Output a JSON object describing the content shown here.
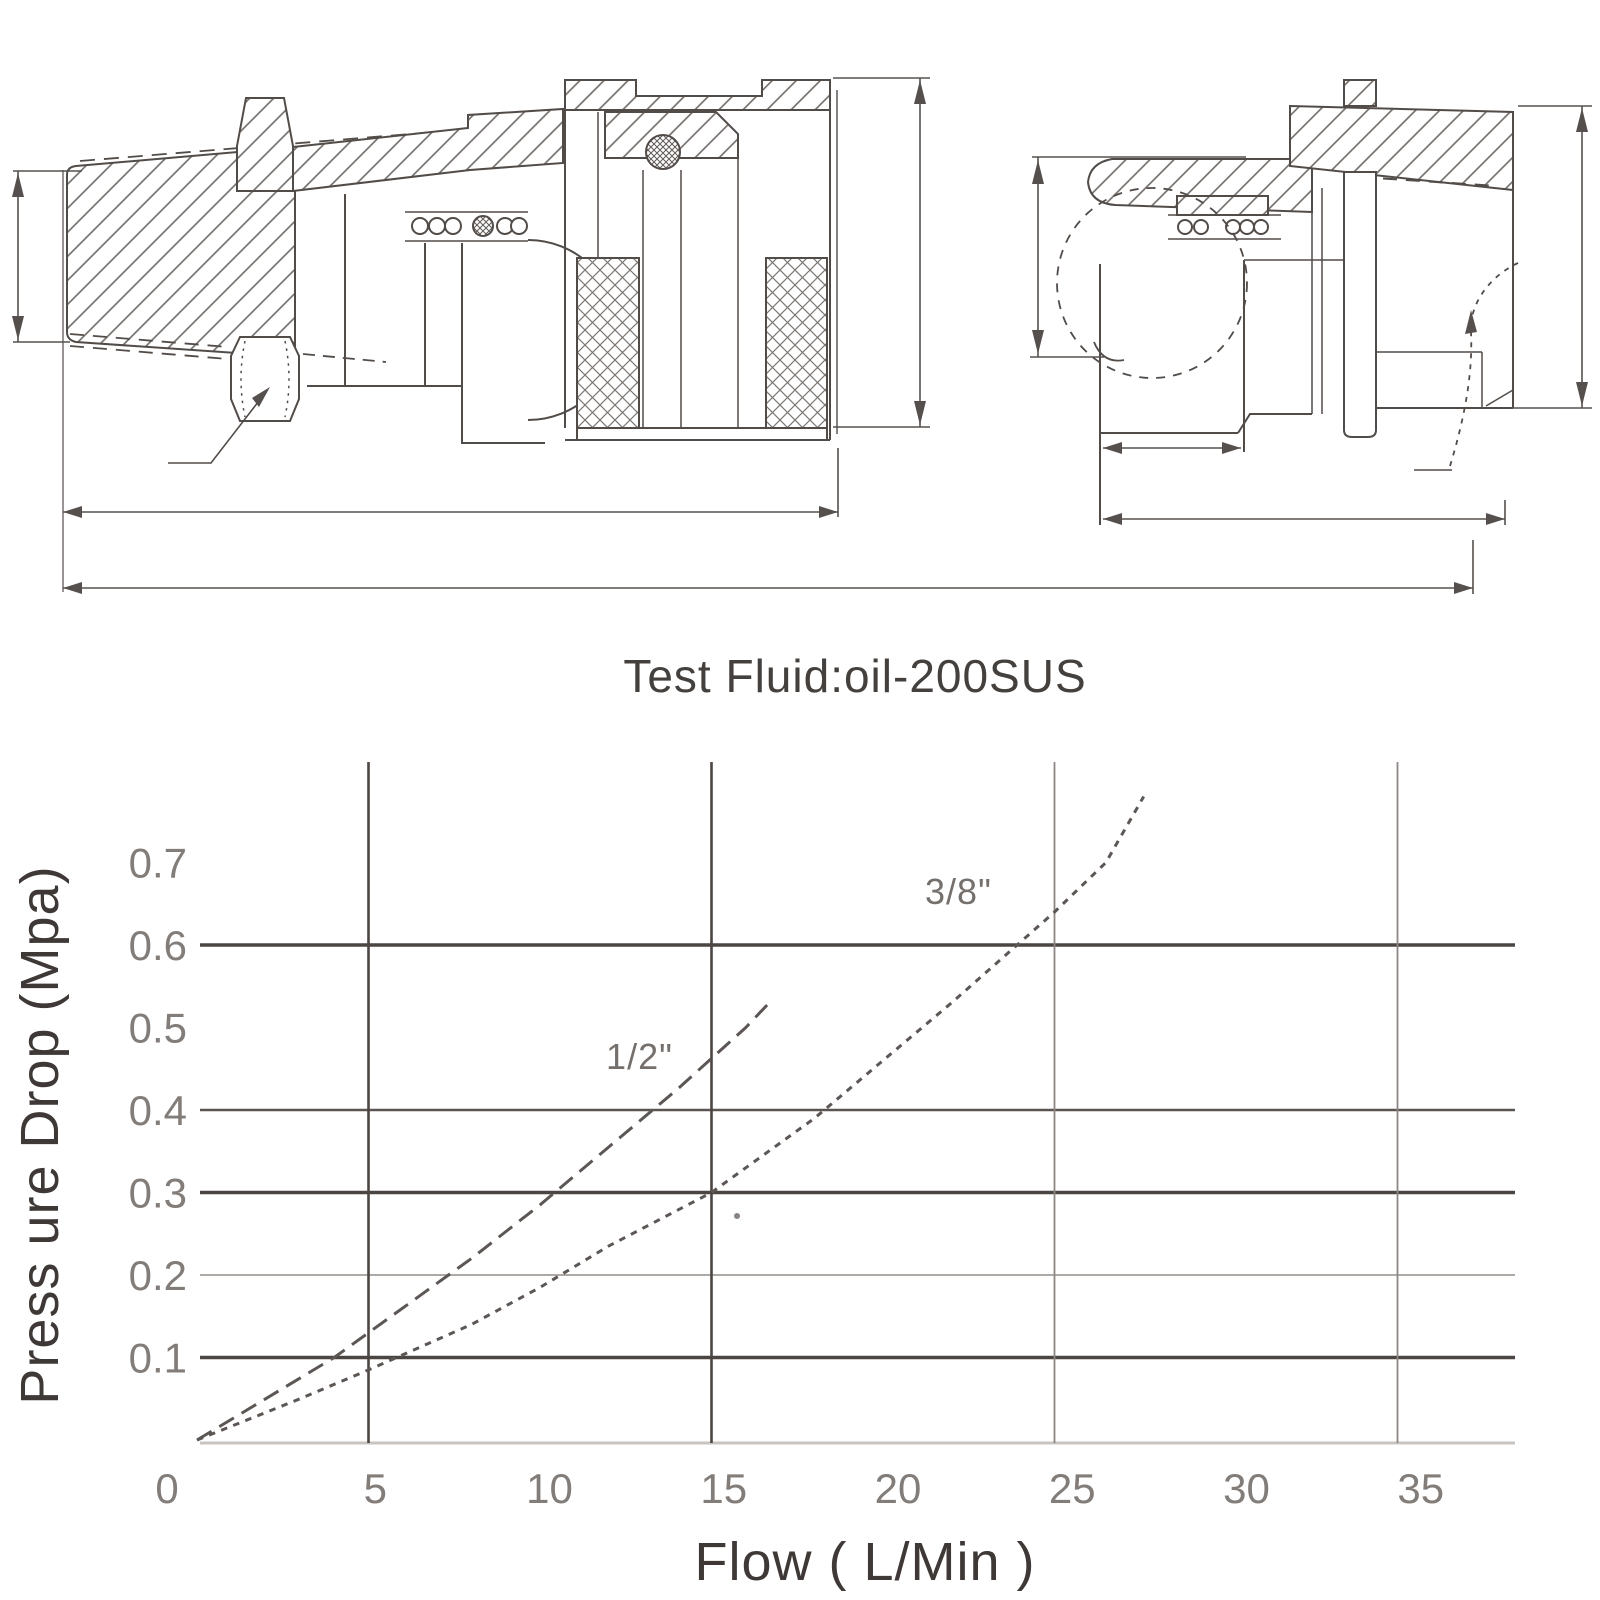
{
  "figure": {
    "type": "quick-coupling-datasheet",
    "test_fluid_note": "Test Fluid:oil-200SUS"
  },
  "drawings": {
    "left": {
      "name": "female-coupler-cross-section"
    },
    "right": {
      "name": "male-plug-cross-section"
    }
  },
  "chart_data": {
    "type": "line",
    "title": "Test Fluid:oil-200SUS",
    "xlabel": "Flow ( L/Min )",
    "ylabel": "Press ure Drop (Mpa)",
    "xlim": [
      0,
      38.4
    ],
    "ylim": [
      0,
      0.82
    ],
    "grid": true,
    "legend_position": "inline-labels",
    "x_ticks": [
      0,
      5,
      10,
      15,
      20,
      25,
      30,
      35
    ],
    "y_ticks": [
      0.7,
      0.6,
      0.5,
      0.4,
      0.3,
      0.2,
      0.1
    ],
    "x_gridlines": [
      {
        "value": 5,
        "weight": "bold"
      },
      {
        "value": 15,
        "weight": "bold"
      },
      {
        "value": 25,
        "weight": "medium"
      },
      {
        "value": 35,
        "weight": "medium"
      }
    ],
    "y_gridlines": [
      {
        "value": 0.6,
        "weight": "bold"
      },
      {
        "value": 0.4,
        "weight": "medium"
      },
      {
        "value": 0.3,
        "weight": "bold"
      },
      {
        "value": 0.2,
        "weight": "light"
      },
      {
        "value": 0.1,
        "weight": "bold"
      }
    ],
    "series": [
      {
        "name": "1/2\"",
        "dash": "long",
        "label_at": {
          "x": 12.9,
          "y": 0.45
        },
        "points": [
          [
            0,
            0
          ],
          [
            2,
            0.05
          ],
          [
            4,
            0.1
          ],
          [
            6,
            0.16
          ],
          [
            8,
            0.22
          ],
          [
            10,
            0.285
          ],
          [
            12,
            0.355
          ],
          [
            14,
            0.425
          ],
          [
            16,
            0.5
          ],
          [
            16.8,
            0.535
          ]
        ]
      },
      {
        "name": "3/8\"",
        "dash": "short",
        "label_at": {
          "x": 22.2,
          "y": 0.65
        },
        "points": [
          [
            0,
            0
          ],
          [
            3,
            0.05
          ],
          [
            5,
            0.085
          ],
          [
            8,
            0.14
          ],
          [
            10,
            0.185
          ],
          [
            12,
            0.235
          ],
          [
            15,
            0.3
          ],
          [
            18,
            0.39
          ],
          [
            20,
            0.46
          ],
          [
            22,
            0.53
          ],
          [
            25,
            0.64
          ],
          [
            26.5,
            0.7
          ],
          [
            27.6,
            0.78
          ]
        ]
      }
    ]
  },
  "colors": {
    "background": "#ffffff",
    "line_dark": "#4c4643",
    "line_medium": "#5b5552",
    "line_light": "#a39d99",
    "axis_baseline": "#c9c4c0",
    "curve": "#5c5755",
    "tick_text": "#837d79",
    "label_text": "#3e3936"
  }
}
